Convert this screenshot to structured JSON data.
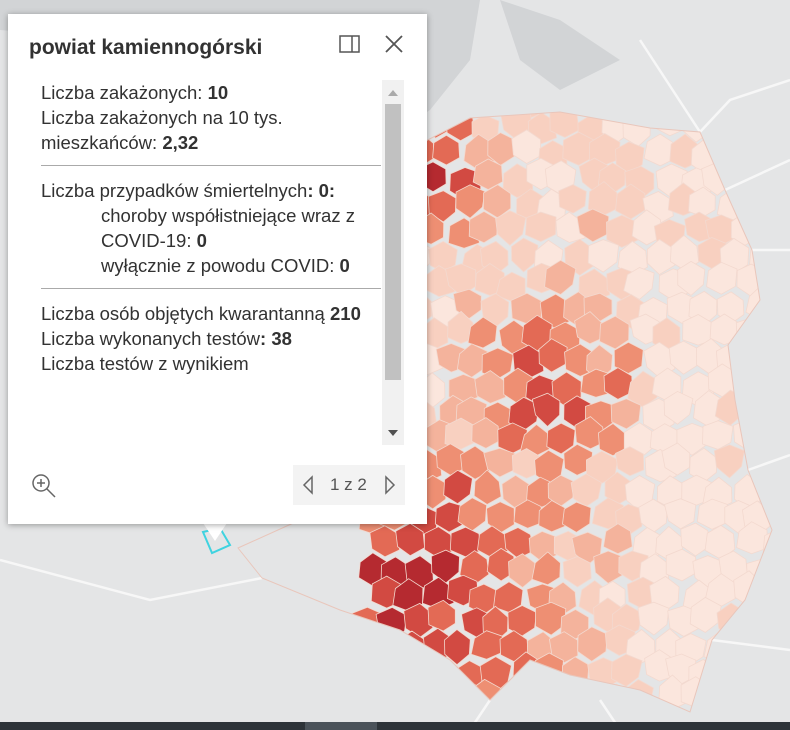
{
  "popup": {
    "title": "powiat kamiennogórski",
    "sections": [
      {
        "items": [
          {
            "label": "Liczba zakażonych:",
            "value": "10"
          },
          {
            "label": "Liczba zakażonych na 10 tys. mieszkańców:",
            "value": "2,32"
          }
        ]
      },
      {
        "items": [
          {
            "label": "Liczba przypadków śmiertelnych",
            "value": ": 0:"
          },
          {
            "label": "choroby współistniejące wraz z COVID-19:",
            "value": "0"
          },
          {
            "label": "wyłącznie z powodu COVID:",
            "value": "0"
          }
        ]
      },
      {
        "items": [
          {
            "label": "Liczba osób objętych kwarantanną",
            "value": "210"
          },
          {
            "label": "Liczba wykonanych testów",
            "value": ": 38"
          },
          {
            "label": "Liczba testów z wynikiem",
            "value": null
          }
        ]
      }
    ],
    "pager": "1 z 2"
  }
}
